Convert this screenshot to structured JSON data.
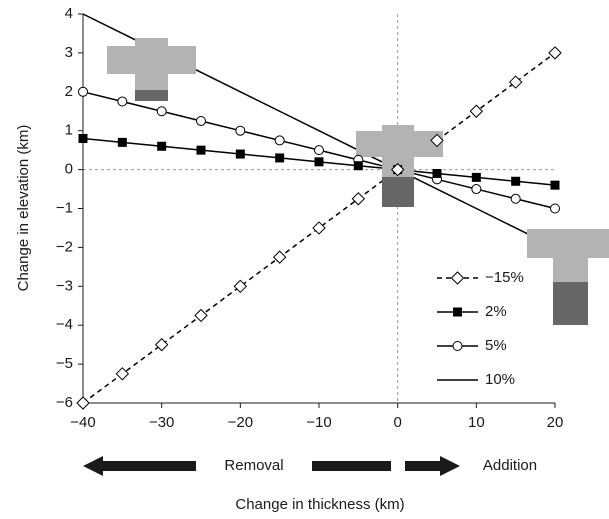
{
  "chart_data": {
    "type": "line",
    "x_label": "Change in thickness (km)",
    "y_label": "Change in elevation (km)",
    "annotations": [
      "Removal",
      "Addition"
    ],
    "x": [
      -40,
      -35,
      -30,
      -25,
      -20,
      -15,
      -10,
      -5,
      0,
      5,
      10,
      15,
      20
    ],
    "xlim": [
      -40,
      20
    ],
    "ylim": [
      -6,
      4
    ],
    "xticks": [
      {
        "value": -40,
        "label": "−40"
      },
      {
        "value": -30,
        "label": "−30"
      },
      {
        "value": -20,
        "label": "−20"
      },
      {
        "value": -10,
        "label": "−10"
      },
      0,
      10,
      20
    ],
    "yticks": [
      {
        "value": -6,
        "label": "−6"
      },
      {
        "value": -5,
        "label": "−5"
      },
      {
        "value": -4,
        "label": "−4"
      },
      {
        "value": -3,
        "label": "−3"
      },
      {
        "value": -2,
        "label": "−2"
      },
      {
        "value": -1,
        "label": "−1"
      },
      0,
      1,
      2,
      3,
      4
    ],
    "series": [
      {
        "name": "−15%",
        "color": "#000000",
        "marker": "diamond-open",
        "dashed": true,
        "values": [
          -6,
          -5.25,
          -4.5,
          -3.75,
          -3,
          -2.25,
          -1.5,
          -0.75,
          0,
          0.75,
          1.5,
          2.25,
          3
        ]
      },
      {
        "name": "2%",
        "color": "#000000",
        "marker": "square-filled",
        "dashed": false,
        "values": [
          0.8,
          0.7,
          0.6,
          0.5,
          0.4,
          0.3,
          0.2,
          0.1,
          0,
          -0.1,
          -0.2,
          -0.3,
          -0.4
        ]
      },
      {
        "name": "5%",
        "color": "#000000",
        "marker": "circle-open",
        "dashed": false,
        "values": [
          2,
          1.75,
          1.5,
          1.25,
          1,
          0.75,
          0.5,
          0.25,
          0,
          -0.25,
          -0.5,
          -0.75,
          -1
        ]
      },
      {
        "name": "10%",
        "color": "#000000",
        "marker": "none",
        "dashed": false,
        "values": [
          4,
          3.5,
          3,
          2.5,
          2,
          1.5,
          1,
          0.5,
          0,
          -0.5,
          -1,
          -1.5,
          -2
        ]
      }
    ],
    "legend": "lower right"
  }
}
